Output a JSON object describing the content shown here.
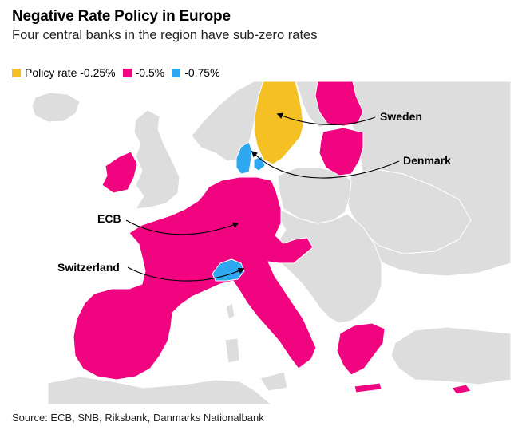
{
  "title": "Negative Rate Policy in Europe",
  "subtitle": "Four central banks in the region have sub-zero rates",
  "legend": {
    "items": [
      {
        "label": "Policy rate -0.25%",
        "color": "#f5c024"
      },
      {
        "label": "-0.5%",
        "color": "#f0047f"
      },
      {
        "label": "-0.75%",
        "color": "#2ea8f0"
      }
    ]
  },
  "colors": {
    "background_land": "#dddddd",
    "border": "#ffffff"
  },
  "callouts": {
    "sweden": "Sweden",
    "denmark": "Denmark",
    "ecb": "ECB",
    "switzerland": "Switzerland"
  },
  "source": "Source: ECB, SNB, Riksbank, Danmarks Nationalbank"
}
